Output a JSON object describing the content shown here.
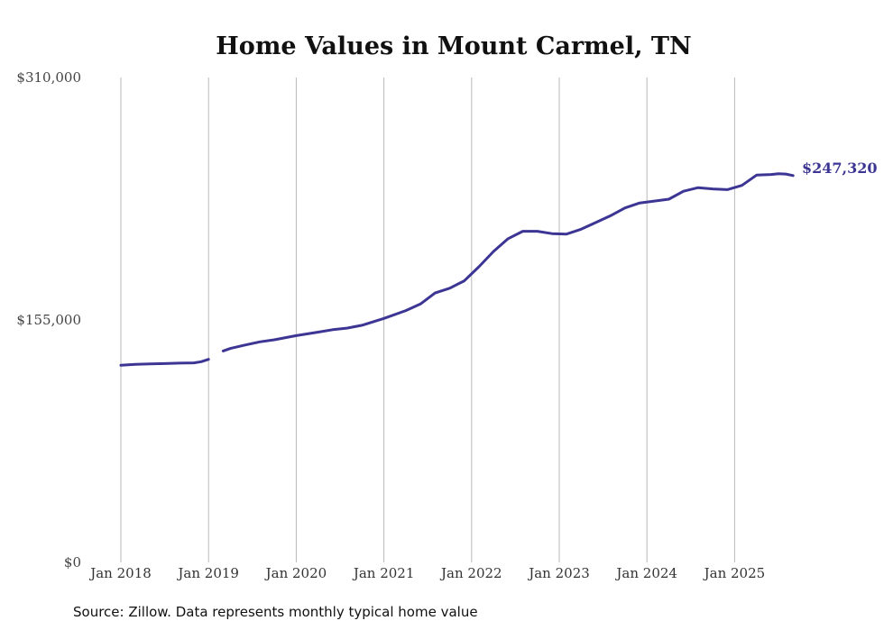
{
  "chart_data": {
    "type": "line",
    "title": "Home Values in Mount Carmel, TN",
    "xlabel": "",
    "ylabel": "",
    "ylim": [
      0,
      310000
    ],
    "y_ticks": [
      "$0",
      "$155,000",
      "$310,000"
    ],
    "x_ticks": [
      {
        "date": "2018-01",
        "label": "Jan 2018"
      },
      {
        "date": "2019-01",
        "label": "Jan 2019"
      },
      {
        "date": "2020-01",
        "label": "Jan 2020"
      },
      {
        "date": "2021-01",
        "label": "Jan 2021"
      },
      {
        "date": "2022-01",
        "label": "Jan 2022"
      },
      {
        "date": "2023-01",
        "label": "Jan 2023"
      },
      {
        "date": "2024-01",
        "label": "Jan 2024"
      },
      {
        "date": "2025-01",
        "label": "Jan 2025"
      }
    ],
    "grid": "vertical",
    "end_label": "$247,320",
    "series": [
      {
        "color": "#3c3594",
        "segments": [
          [
            {
              "x": "2018-01",
              "y": 126000
            },
            {
              "x": "2018-03",
              "y": 126600
            },
            {
              "x": "2018-05",
              "y": 126900
            },
            {
              "x": "2018-07",
              "y": 127100
            },
            {
              "x": "2018-09",
              "y": 127400
            },
            {
              "x": "2018-11",
              "y": 127600
            },
            {
              "x": "2018-12",
              "y": 128300
            },
            {
              "x": "2019-01",
              "y": 129800
            }
          ],
          [
            {
              "x": "2019-03",
              "y": 135200
            },
            {
              "x": "2019-04",
              "y": 136800
            },
            {
              "x": "2019-06",
              "y": 139000
            },
            {
              "x": "2019-08",
              "y": 141000
            },
            {
              "x": "2019-10",
              "y": 142300
            },
            {
              "x": "2020-01",
              "y": 145000
            },
            {
              "x": "2020-04",
              "y": 147200
            },
            {
              "x": "2020-06",
              "y": 148800
            },
            {
              "x": "2020-08",
              "y": 149800
            },
            {
              "x": "2020-10",
              "y": 151600
            },
            {
              "x": "2021-01",
              "y": 156000
            },
            {
              "x": "2021-04",
              "y": 161000
            },
            {
              "x": "2021-06",
              "y": 165200
            },
            {
              "x": "2021-08",
              "y": 172200
            },
            {
              "x": "2021-10",
              "y": 175300
            },
            {
              "x": "2021-12",
              "y": 180000
            },
            {
              "x": "2022-02",
              "y": 189000
            },
            {
              "x": "2022-04",
              "y": 198800
            },
            {
              "x": "2022-06",
              "y": 207000
            },
            {
              "x": "2022-08",
              "y": 211700
            },
            {
              "x": "2022-10",
              "y": 211700
            },
            {
              "x": "2022-12",
              "y": 210200
            },
            {
              "x": "2023-02",
              "y": 209900
            },
            {
              "x": "2023-04",
              "y": 213000
            },
            {
              "x": "2023-06",
              "y": 217300
            },
            {
              "x": "2023-08",
              "y": 221600
            },
            {
              "x": "2023-10",
              "y": 226600
            },
            {
              "x": "2023-12",
              "y": 229800
            },
            {
              "x": "2024-02",
              "y": 231000
            },
            {
              "x": "2024-04",
              "y": 232200
            },
            {
              "x": "2024-06",
              "y": 237300
            },
            {
              "x": "2024-08",
              "y": 239600
            },
            {
              "x": "2024-10",
              "y": 238800
            },
            {
              "x": "2024-12",
              "y": 238300
            },
            {
              "x": "2025-02",
              "y": 241000
            },
            {
              "x": "2025-04",
              "y": 247600
            },
            {
              "x": "2025-06",
              "y": 248000
            },
            {
              "x": "2025-07",
              "y": 248500
            },
            {
              "x": "2025-08",
              "y": 248300
            },
            {
              "x": "2025-09",
              "y": 247320
            }
          ]
        ]
      }
    ]
  },
  "source_note": "Source: Zillow. Data represents monthly typical home value"
}
